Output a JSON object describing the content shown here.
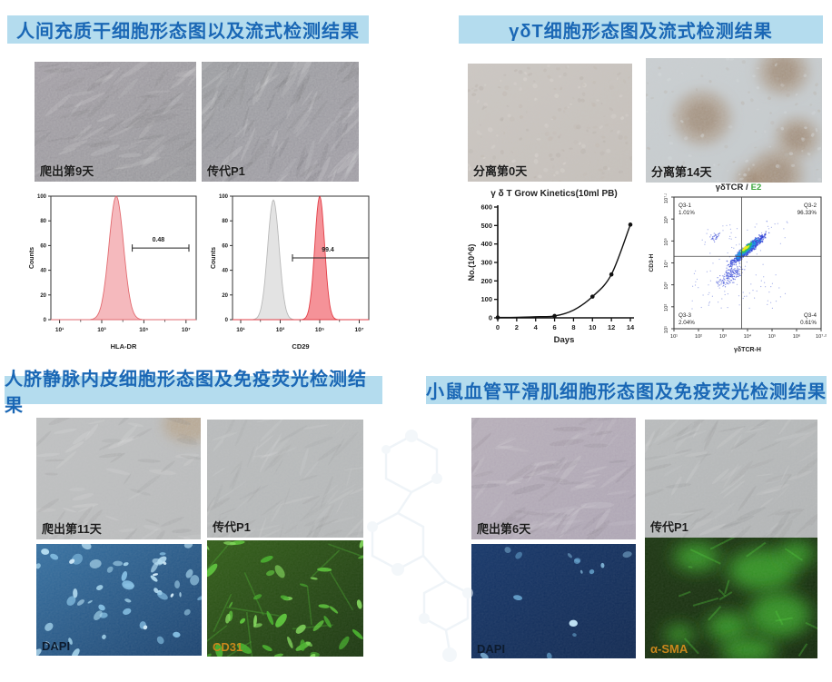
{
  "colors": {
    "title_bg": "#b4dcee",
    "title_text": "#1a67b5",
    "histogram_pink": "#f5b9bd",
    "histogram_red": "#f59298",
    "histogram_grey": "#e3e3e3",
    "dapi_blue": "#2f6da0",
    "marker_green": "#58cb33",
    "fluor_label_orange": "#c9871c",
    "scatter_accent_green": "#3aa63a"
  },
  "panels": {
    "msc": {
      "title": "人间充质干细胞形态图以及流式检测结果",
      "micrographs": [
        {
          "label": "爬出第9天"
        },
        {
          "label": "传代P1"
        }
      ]
    },
    "gdt": {
      "title": "γδT细胞形态图及流式检测结果",
      "micrographs": [
        {
          "label": "分离第0天"
        },
        {
          "label": "分离第14天"
        }
      ]
    },
    "huvec": {
      "title": "人脐静脉内皮细胞形态图及免疫荧光检测结果",
      "micrographs": [
        {
          "label": "爬出第11天"
        },
        {
          "label": "传代P1"
        }
      ],
      "fluorescence": [
        {
          "label": "DAPI"
        },
        {
          "label": "CD31"
        }
      ]
    },
    "smc": {
      "title": "小鼠血管平滑肌细胞形态图及免疫荧光检测结果",
      "micrographs": [
        {
          "label": "爬出第6天"
        },
        {
          "label": "传代P1"
        }
      ],
      "fluorescence": [
        {
          "label": "DAPI"
        },
        {
          "label": "α-SMA"
        }
      ]
    }
  },
  "chart_data": [
    {
      "id": "hla_dr",
      "type": "flow-histogram",
      "xlabel": "HLA-DR",
      "ylabel": "Counts",
      "x_ticks": [
        "10¹",
        "10³",
        "10⁵",
        "10⁷"
      ],
      "y_ticks": [
        0,
        20,
        40,
        60,
        80,
        100
      ],
      "ylim": [
        0,
        100
      ],
      "peaks": [
        {
          "center": 0.45,
          "sigma": 0.05,
          "height": 100,
          "fill": "#f5b9bd",
          "stroke": "#e26a6f"
        }
      ],
      "gate": {
        "from": 0.56,
        "to": 0.95,
        "y": 58,
        "label": "0.48",
        "label_x": 0.74,
        "caps": "both"
      }
    },
    {
      "id": "cd29",
      "type": "flow-histogram",
      "xlabel": "CD29",
      "ylabel": "Counts",
      "x_ticks": [
        "10¹",
        "10³",
        "10⁵",
        "10⁷"
      ],
      "y_ticks": [
        0,
        20,
        40,
        60,
        80,
        100
      ],
      "ylim": [
        0,
        100
      ],
      "peaks": [
        {
          "center": 0.3,
          "sigma": 0.042,
          "height": 97,
          "fill": "#e3e3e3",
          "stroke": "#b9b9b9"
        },
        {
          "center": 0.64,
          "sigma": 0.036,
          "height": 100,
          "fill": "#f59298",
          "stroke": "#e23e46"
        }
      ],
      "gate": {
        "from": 0.44,
        "to": 1.0,
        "y": 50,
        "label": "99.4",
        "label_x": 0.7,
        "caps": "left"
      }
    },
    {
      "id": "growth",
      "type": "line",
      "title": "γ δ  T Grow Kinetics(10ml PB)",
      "xlabel": "Days",
      "ylabel": "No.(10^6)",
      "x_ticks": [
        0,
        2,
        4,
        6,
        8,
        10,
        12,
        14
      ],
      "y_ticks": [
        0,
        100,
        200,
        300,
        400,
        500,
        600
      ],
      "xlim": [
        0,
        14
      ],
      "ylim": [
        0,
        600
      ],
      "points": [
        [
          0,
          2
        ],
        [
          6,
          10
        ],
        [
          10,
          115
        ],
        [
          12,
          235
        ],
        [
          14,
          505
        ]
      ],
      "curve": [
        [
          0,
          2
        ],
        [
          2,
          3
        ],
        [
          4,
          6
        ],
        [
          6,
          10
        ],
        [
          8,
          42
        ],
        [
          10,
          115
        ],
        [
          12,
          235
        ],
        [
          14,
          505
        ]
      ]
    },
    {
      "id": "facs",
      "type": "flow-scatter",
      "title_main": "γδTCR /",
      "title_accent": "E2",
      "xlabel": "γδTCR-H",
      "ylabel": "CD3-H",
      "x_ticks": [
        "10¹",
        "10²",
        "10³",
        "10⁴",
        "10⁵",
        "10⁶",
        "10⁷·²"
      ],
      "y_ticks": [
        "10¹",
        "10²",
        "10³",
        "10⁴",
        "10⁵",
        "10⁶",
        "10⁷·²"
      ],
      "quadrants": [
        {
          "label": "Q3-1",
          "value": "1.01%"
        },
        {
          "label": "Q3-2",
          "value": "96.33%"
        },
        {
          "label": "Q3-3",
          "value": "2.04%"
        },
        {
          "label": "Q3-4",
          "value": "0.61%"
        }
      ],
      "crosshair": {
        "x": 0.46,
        "y": 0.45
      }
    }
  ]
}
